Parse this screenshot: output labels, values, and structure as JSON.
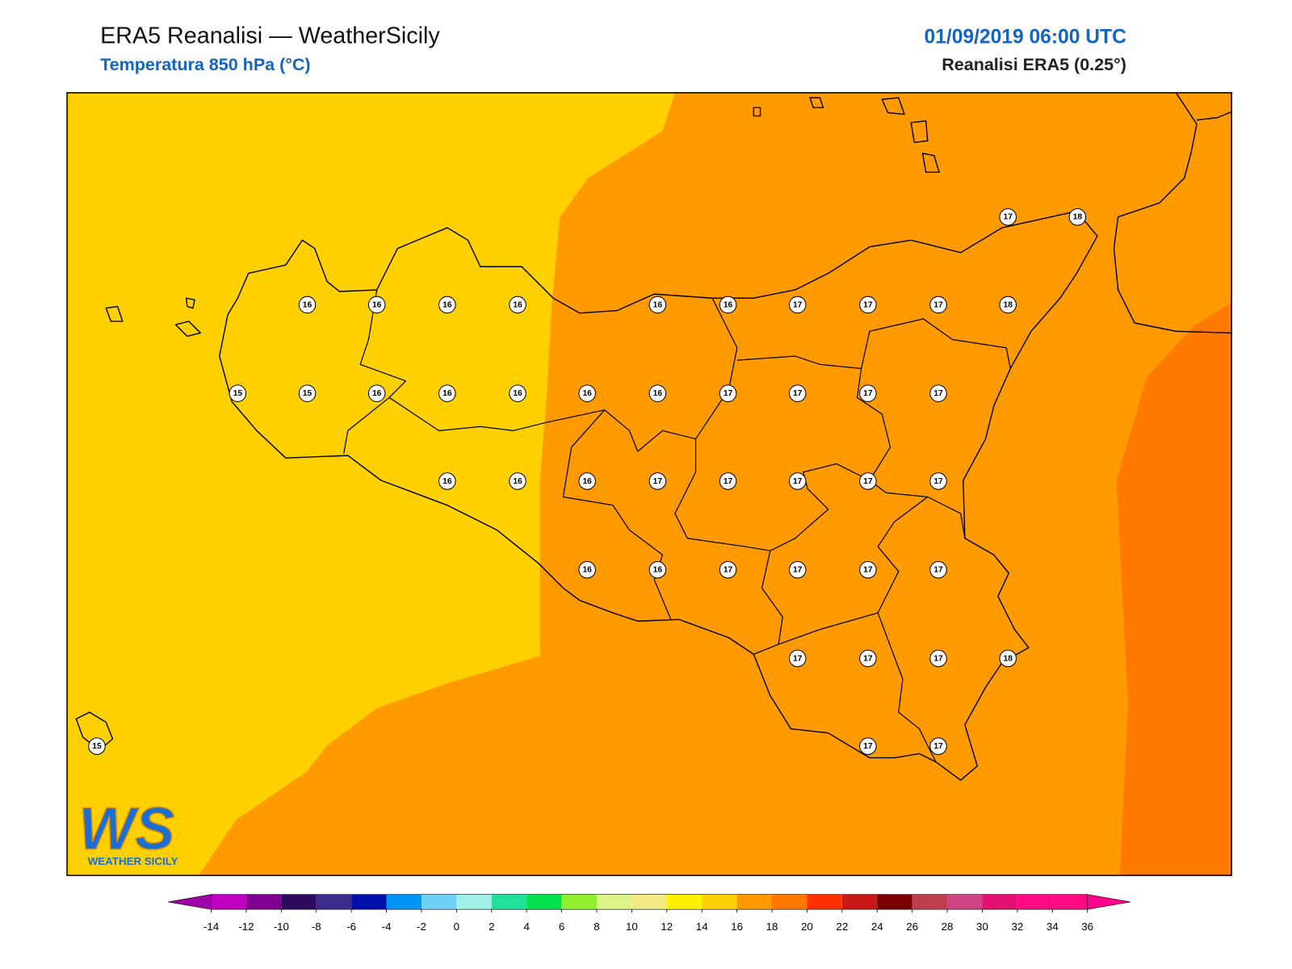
{
  "header": {
    "title": "ERA5 Reanalisi — WeatherSicily",
    "subtitle": "Temperatura 850 hPa (°C)",
    "date": "01/09/2019 06:00 UTC",
    "source": "Reanalisi ERA5 (0.25°)"
  },
  "points": [
    17,
    18,
    16,
    16,
    16,
    16,
    16,
    16,
    17,
    17,
    17,
    18,
    15,
    15,
    16,
    16,
    16,
    16,
    16,
    17,
    17,
    17,
    17,
    16,
    16,
    16,
    17,
    17,
    17,
    17,
    17,
    16,
    16,
    17,
    17,
    17,
    17,
    17,
    17,
    17,
    18,
    15,
    17,
    17
  ],
  "colorbar": {
    "ticks": [
      -14,
      -12,
      -10,
      -8,
      -6,
      -4,
      -2,
      0,
      2,
      4,
      6,
      8,
      10,
      12,
      14,
      16,
      18,
      20,
      22,
      24,
      26,
      28,
      30,
      32,
      34,
      36
    ],
    "colors": [
      "#c000c0",
      "#800090",
      "#2e0a5e",
      "#3c2a8c",
      "#0010a8",
      "#0094f4",
      "#70d0f8",
      "#a0f2e6",
      "#20e09a",
      "#00e050",
      "#90f030",
      "#dff488",
      "#f2e884",
      "#fff000",
      "#ffd000",
      "#ff9a00",
      "#ff7800",
      "#ff3000",
      "#c81818",
      "#780000",
      "#bc4050",
      "#d04484",
      "#e21070",
      "#ff0a80",
      "#ff0a80"
    ],
    "under_color": "#a000a8",
    "over_color": "#ff0090"
  },
  "logo": {
    "mark": "WS",
    "name": "WEATHER SICILY"
  }
}
